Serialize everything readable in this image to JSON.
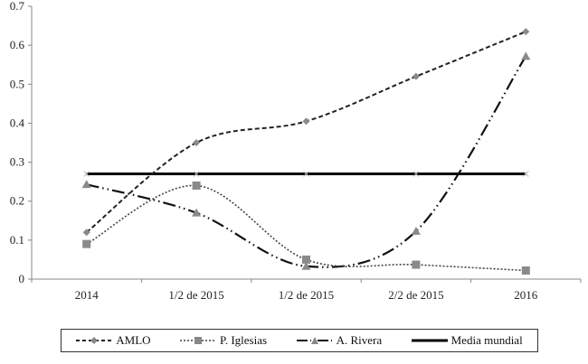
{
  "chart_data": {
    "type": "line",
    "title": "",
    "xlabel": "",
    "ylabel": "",
    "categories": [
      "2014",
      "1/2 de 2015",
      "1/2 de 2015",
      "2/2 de 2015",
      "2016"
    ],
    "ylim": [
      0,
      0.7
    ],
    "yticks": [
      "0",
      "0.1",
      "0.2",
      "0.3",
      "0.4",
      "0.5",
      "0.6",
      "0.7"
    ],
    "grid": false,
    "legend_position": "bottom",
    "series": [
      {
        "name": "AMLO",
        "values": [
          0.12,
          0.35,
          0.405,
          0.52,
          0.635
        ],
        "style": "dashed",
        "marker": "diamond",
        "color": "#222222"
      },
      {
        "name": "P. Iglesias",
        "values": [
          0.09,
          0.24,
          0.05,
          0.037,
          0.022
        ],
        "style": "dotted",
        "marker": "square",
        "color": "#444444"
      },
      {
        "name": "A. Rivera",
        "values": [
          0.243,
          0.17,
          0.033,
          0.123,
          0.572
        ],
        "style": "dash-dot-dot",
        "marker": "triangle",
        "color": "#111111"
      },
      {
        "name": "Media mundial",
        "values": [
          0.27,
          0.27,
          0.27,
          0.27,
          0.27
        ],
        "style": "solid",
        "marker": "x",
        "color": "#000000"
      }
    ]
  },
  "legend": {
    "items": [
      "AMLO",
      "P. Iglesias",
      "A. Rivera",
      "Media mundial"
    ]
  }
}
